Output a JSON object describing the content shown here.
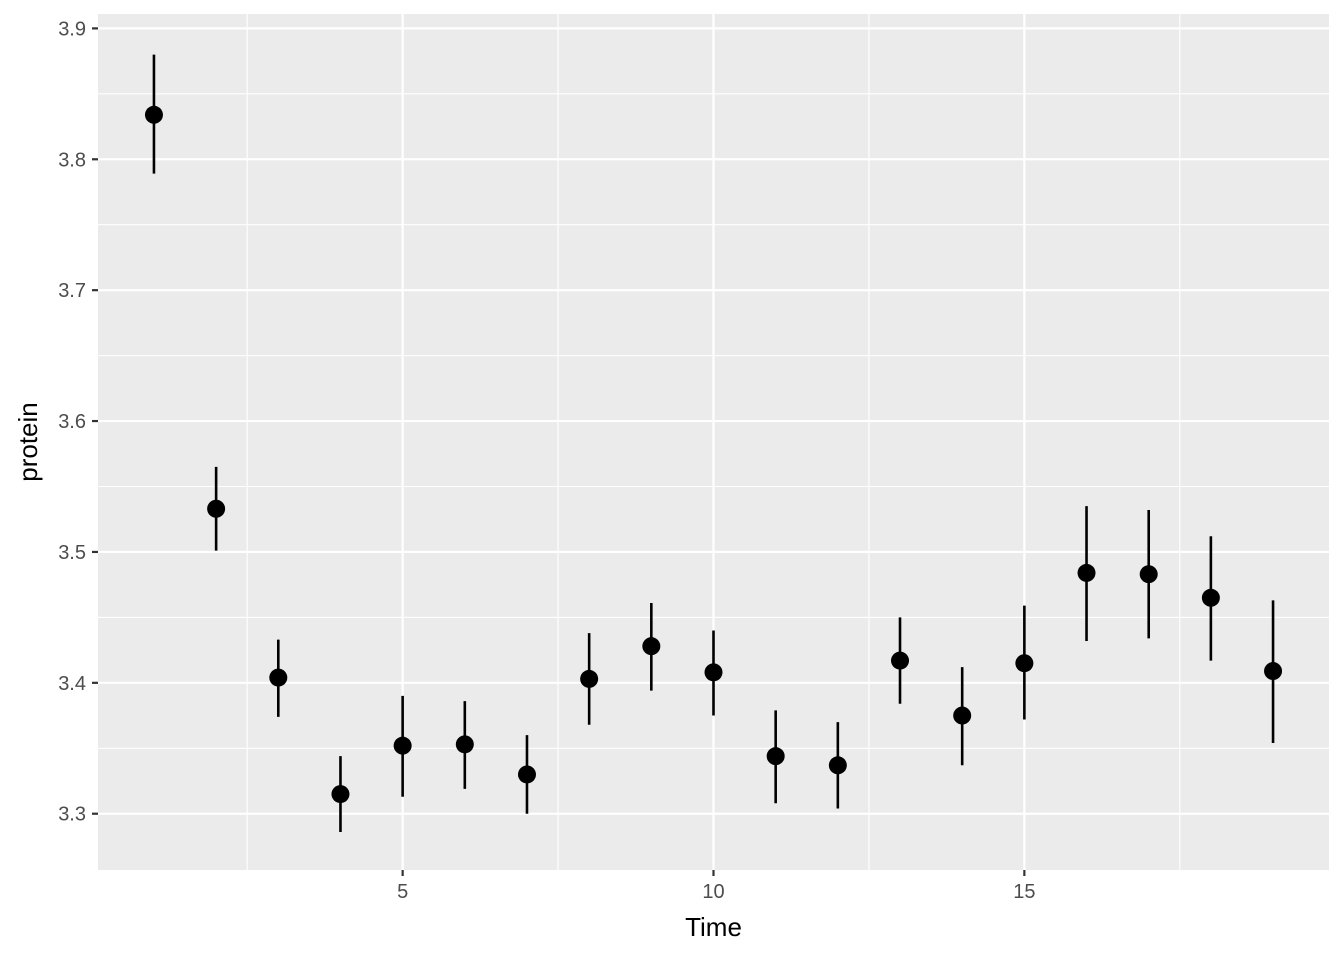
{
  "chart_data": {
    "type": "scatter",
    "subtype": "pointrange",
    "xlabel": "Time",
    "ylabel": "protein",
    "xlim": [
      0.1,
      19.9
    ],
    "ylim": [
      3.257,
      3.911
    ],
    "x_major_ticks": [
      5,
      10,
      15
    ],
    "x_minor_ticks": [
      2.5,
      7.5,
      12.5,
      17.5
    ],
    "y_major_ticks": [
      3.3,
      3.4,
      3.5,
      3.6,
      3.7,
      3.8,
      3.9
    ],
    "y_minor_ticks": [
      3.25,
      3.35,
      3.45,
      3.55,
      3.65,
      3.75,
      3.85
    ],
    "x_tick_labels": [
      "5",
      "10",
      "15"
    ],
    "y_tick_labels": [
      "3.3",
      "3.4",
      "3.5",
      "3.6",
      "3.7",
      "3.8",
      "3.9"
    ],
    "grid": true,
    "panel_background": "#ebebeb",
    "grid_color": "#ffffff",
    "point_color": "#000000",
    "points": [
      {
        "x": 1,
        "y": 3.834,
        "ymin": 3.789,
        "ymax": 3.88
      },
      {
        "x": 2,
        "y": 3.533,
        "ymin": 3.501,
        "ymax": 3.565
      },
      {
        "x": 3,
        "y": 3.404,
        "ymin": 3.374,
        "ymax": 3.433
      },
      {
        "x": 4,
        "y": 3.315,
        "ymin": 3.286,
        "ymax": 3.344
      },
      {
        "x": 5,
        "y": 3.352,
        "ymin": 3.313,
        "ymax": 3.39
      },
      {
        "x": 6,
        "y": 3.353,
        "ymin": 3.319,
        "ymax": 3.386
      },
      {
        "x": 7,
        "y": 3.33,
        "ymin": 3.3,
        "ymax": 3.36
      },
      {
        "x": 8,
        "y": 3.403,
        "ymin": 3.368,
        "ymax": 3.438
      },
      {
        "x": 9,
        "y": 3.428,
        "ymin": 3.394,
        "ymax": 3.461
      },
      {
        "x": 10,
        "y": 3.408,
        "ymin": 3.375,
        "ymax": 3.44
      },
      {
        "x": 11,
        "y": 3.344,
        "ymin": 3.308,
        "ymax": 3.379
      },
      {
        "x": 12,
        "y": 3.337,
        "ymin": 3.304,
        "ymax": 3.37
      },
      {
        "x": 13,
        "y": 3.417,
        "ymin": 3.384,
        "ymax": 3.45
      },
      {
        "x": 14,
        "y": 3.375,
        "ymin": 3.337,
        "ymax": 3.412
      },
      {
        "x": 15,
        "y": 3.415,
        "ymin": 3.372,
        "ymax": 3.459
      },
      {
        "x": 16,
        "y": 3.484,
        "ymin": 3.432,
        "ymax": 3.535
      },
      {
        "x": 17,
        "y": 3.483,
        "ymin": 3.434,
        "ymax": 3.532
      },
      {
        "x": 18,
        "y": 3.465,
        "ymin": 3.417,
        "ymax": 3.512
      },
      {
        "x": 19,
        "y": 3.409,
        "ymin": 3.354,
        "ymax": 3.463
      }
    ]
  }
}
